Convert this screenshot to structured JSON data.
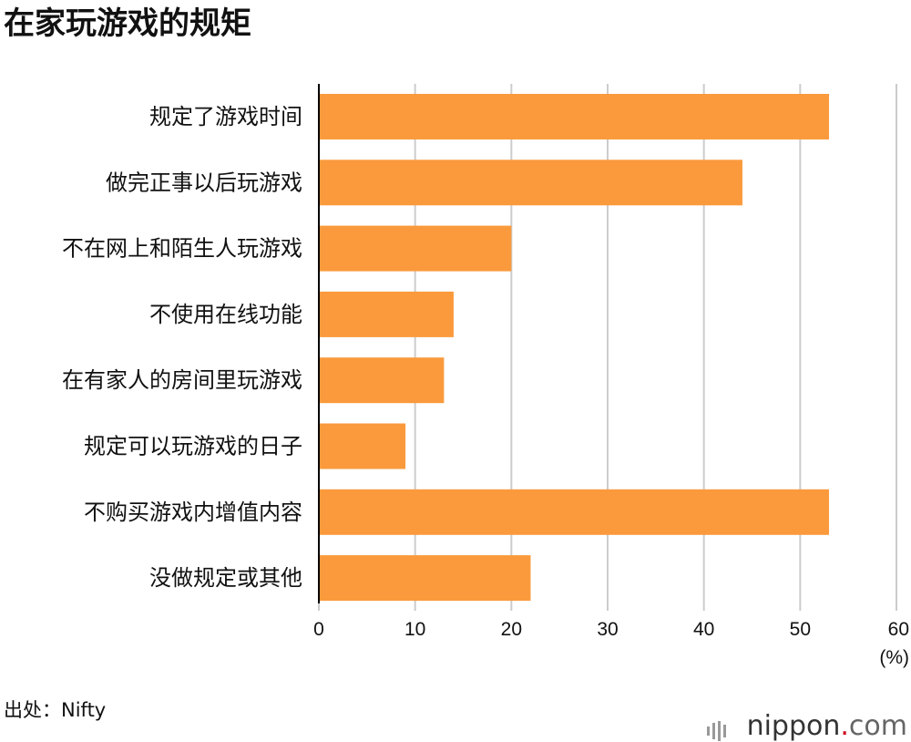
{
  "title": "在家玩游戏的规矩",
  "source": "出处：Nifty",
  "brand": {
    "name": "nippon",
    "dot": ".",
    "tld": "com"
  },
  "colors": {
    "bar": "#fa9a3c",
    "grid": "#cccccc",
    "axis": "#000000"
  },
  "chart_data": {
    "type": "bar",
    "orientation": "horizontal",
    "categories": [
      "规定了游戏时间",
      "做完正事以后玩游戏",
      "不在网上和陌生人玩游戏",
      "不使用在线功能",
      "在有家人的房间里玩游戏",
      "规定可以玩游戏的日子",
      "不购买游戏内增值内容",
      "没做规定或其他"
    ],
    "values": [
      53,
      44,
      20,
      14,
      13,
      9,
      53,
      22
    ],
    "xlim": [
      0,
      60
    ],
    "xticks": [
      0,
      10,
      20,
      30,
      40,
      50,
      60
    ],
    "unit": "(%)",
    "grid": true
  }
}
